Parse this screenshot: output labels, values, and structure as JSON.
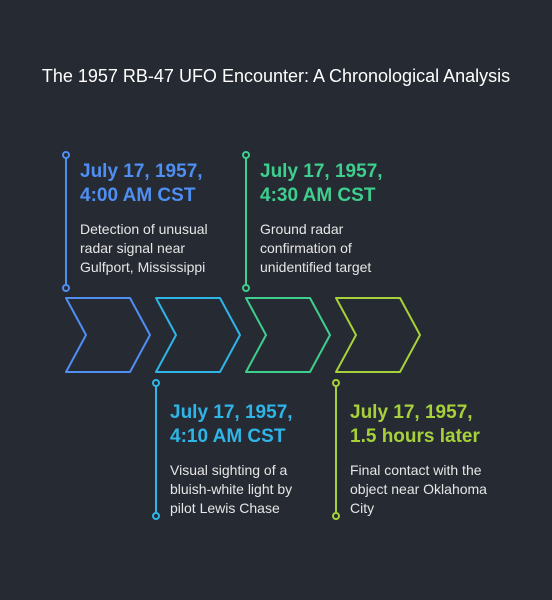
{
  "title": "The 1957 RB-47 UFO Encounter: A Chronological Analysis",
  "events": [
    {
      "date": "July 17, 1957, 4:00 AM CST",
      "description": "Detection of unusual radar signal near Gulfport, Mississippi",
      "color": "#4f8ff2",
      "position": "above"
    },
    {
      "date": "July 17, 1957, 4:10 AM CST",
      "description": "Visual sighting of a bluish-white light by pilot Lewis Chase",
      "color": "#2fb5e8",
      "position": "below"
    },
    {
      "date": "July 17, 1957, 4:30 AM CST",
      "description": "Ground radar confirmation of unidentified target",
      "color": "#3ecf8e",
      "position": "above"
    },
    {
      "date": "July 17, 1957, 1.5 hours later",
      "description": "Final contact with the object near Oklahoma City",
      "color": "#a6d13a",
      "position": "below"
    }
  ]
}
